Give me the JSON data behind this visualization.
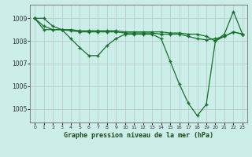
{
  "title": "Graphe pression niveau de la mer (hPa)",
  "bg_color": "#cceee8",
  "line_color": "#1a6e2e",
  "grid_color": "#bbcccc",
  "xlim": [
    -0.5,
    23.5
  ],
  "ylim": [
    1004.4,
    1009.6
  ],
  "yticks": [
    1005,
    1006,
    1007,
    1008,
    1009
  ],
  "xticks": [
    0,
    1,
    2,
    3,
    4,
    5,
    6,
    7,
    8,
    9,
    10,
    11,
    12,
    13,
    14,
    15,
    16,
    17,
    18,
    19,
    20,
    21,
    22,
    23
  ],
  "series": [
    [
      1009.0,
      1009.0,
      1008.65,
      1008.5,
      1008.1,
      1007.7,
      1007.35,
      1007.35,
      1007.8,
      1008.1,
      1008.3,
      1008.3,
      1008.3,
      1008.3,
      1008.1,
      1007.1,
      1006.1,
      1005.25,
      1004.7,
      1005.2,
      1008.0,
      1008.3,
      1009.3,
      1008.3
    ],
    [
      1009.0,
      1008.65,
      1008.5,
      1008.5,
      1008.45,
      1008.4,
      1008.4,
      1008.4,
      1008.4,
      1008.4,
      1008.35,
      1008.35,
      1008.35,
      1008.35,
      1008.3,
      1008.3,
      1008.3,
      1008.2,
      1008.1,
      1008.05,
      1008.1,
      1008.2,
      1008.4,
      1008.3
    ],
    [
      1009.0,
      1008.5,
      1008.5,
      1008.5,
      1008.5,
      1008.45,
      1008.45,
      1008.45,
      1008.45,
      1008.45,
      1008.4,
      1008.4,
      1008.4,
      1008.4,
      1008.4,
      1008.35,
      1008.35,
      1008.3,
      1008.3,
      1008.2,
      1008.0,
      1008.2,
      1008.4,
      1008.3
    ]
  ]
}
